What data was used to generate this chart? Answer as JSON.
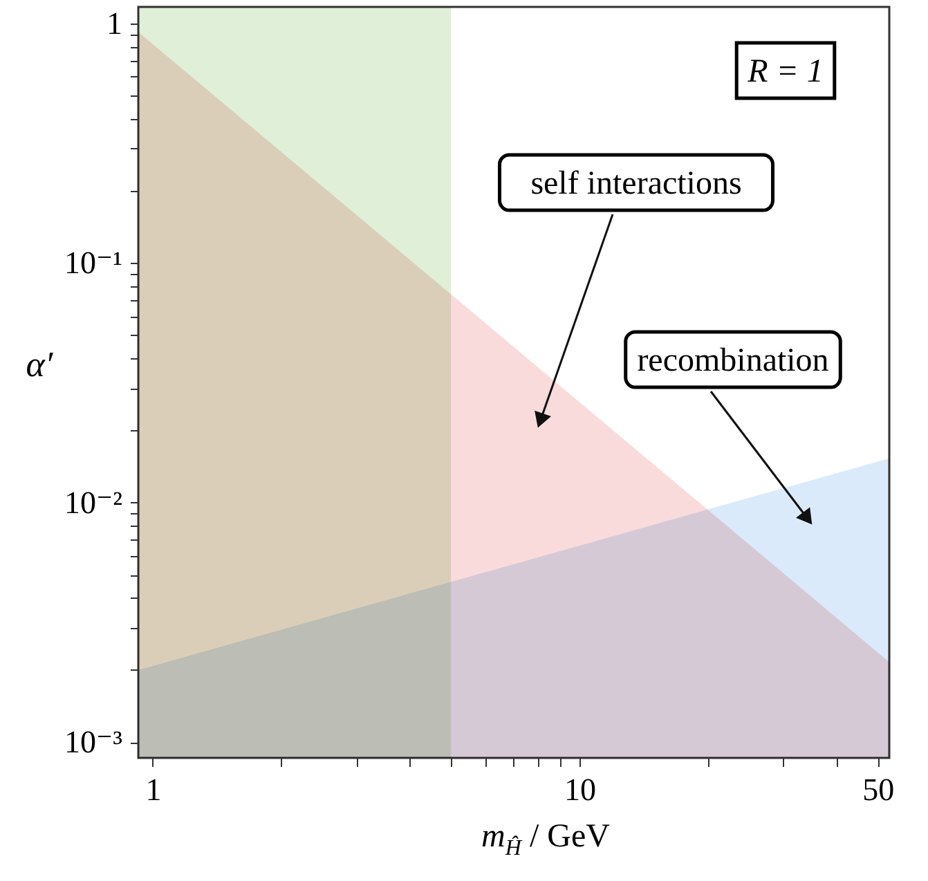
{
  "chart_data": {
    "type": "area",
    "xlabel": "m$_{Ĥ}$ / GeV",
    "ylabel": "α′",
    "x": [
      0.925,
      53.2
    ],
    "xlim": [
      0.925,
      53.2
    ],
    "ylim": [
      0.00086,
      1.17
    ],
    "log": "xy",
    "grid": false,
    "xticks": [
      1,
      {
        "value": 2,
        "label": null
      },
      {
        "value": 3,
        "label": null
      },
      {
        "value": 4,
        "label": null
      },
      {
        "value": 5,
        "label": null
      },
      {
        "value": 6,
        "label": null
      },
      {
        "value": 7,
        "label": null
      },
      {
        "value": 8,
        "label": null
      },
      {
        "value": 9,
        "label": null
      },
      10,
      {
        "value": 20,
        "label": null
      },
      {
        "value": 30,
        "label": null
      },
      {
        "value": 40,
        "label": null
      },
      50
    ],
    "yticks": [
      {
        "value": 0.001,
        "label": "10⁻³"
      },
      {
        "value": 0.002,
        "label": null
      },
      {
        "value": 0.003,
        "label": null
      },
      {
        "value": 0.004,
        "label": null
      },
      {
        "value": 0.005,
        "label": null
      },
      {
        "value": 0.006,
        "label": null
      },
      {
        "value": 0.007,
        "label": null
      },
      {
        "value": 0.008,
        "label": null
      },
      {
        "value": 0.009,
        "label": null
      },
      {
        "value": 0.01,
        "label": "10⁻²"
      },
      {
        "value": 0.02,
        "label": null
      },
      {
        "value": 0.03,
        "label": null
      },
      {
        "value": 0.04,
        "label": null
      },
      {
        "value": 0.05,
        "label": null
      },
      {
        "value": 0.06,
        "label": null
      },
      {
        "value": 0.07,
        "label": null
      },
      {
        "value": 0.08,
        "label": null
      },
      {
        "value": 0.09,
        "label": null
      },
      {
        "value": 0.1,
        "label": "10⁻¹"
      },
      {
        "value": 0.2,
        "label": null
      },
      {
        "value": 0.3,
        "label": null
      },
      {
        "value": 0.4,
        "label": null
      },
      {
        "value": 0.5,
        "label": null
      },
      {
        "value": 0.6,
        "label": null
      },
      {
        "value": 0.7,
        "label": null
      },
      {
        "value": 0.8,
        "label": null
      },
      {
        "value": 0.9,
        "label": null
      },
      1
    ],
    "bands": [
      {
        "axis": "x",
        "from": 0.925,
        "to": 5,
        "color": "#e0f0d8"
      }
    ],
    "series": [
      {
        "color": "#fadbdb",
        "values": [
          0.92,
          0.00216
        ]
      },
      {
        "color": "#dbeafa",
        "values": [
          0.002,
          0.0153
        ]
      }
    ],
    "annotations": [
      "R = 1",
      "self interactions",
      "recombination"
    ]
  }
}
